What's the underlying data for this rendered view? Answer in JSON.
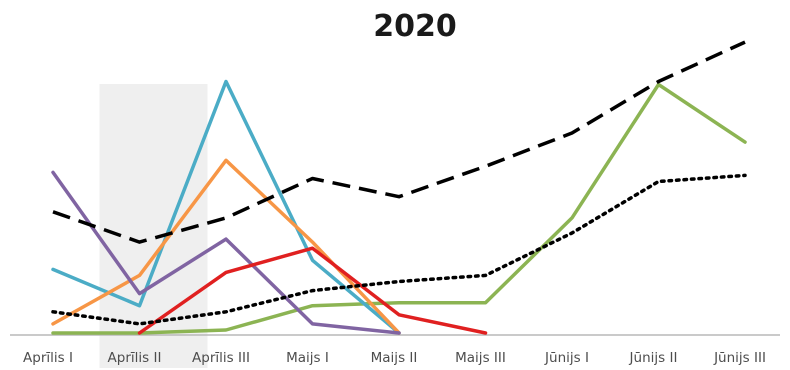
{
  "chart_data": {
    "type": "line",
    "title": "2020",
    "xlabel": "",
    "ylabel": "",
    "categories": [
      "Aprīlis I",
      "Aprīlis II",
      "Aprīlis III",
      "Maijs  I",
      "Maijs  II",
      "Maijs  III",
      "Jūnijs  I",
      "Jūnijs II",
      "Jūnijs III"
    ],
    "ylim": [
      0,
      100
    ],
    "grid": false,
    "highlight_category": "Aprīlis II",
    "series": [
      {
        "color": "#000000",
        "style": "dashed",
        "values": [
          40,
          30,
          38,
          51,
          45,
          55,
          66,
          83,
          96
        ]
      },
      {
        "color": "#000000",
        "style": "dotted",
        "values": [
          7,
          3,
          7,
          14,
          17,
          19,
          33,
          50,
          52
        ]
      },
      {
        "color": "#8cb453",
        "style": "solid",
        "values": [
          0,
          0,
          1,
          9,
          10,
          10,
          38,
          82,
          63
        ]
      },
      {
        "color": "#4bacc6",
        "style": "solid",
        "values": [
          21,
          9,
          83,
          24,
          0,
          null,
          null,
          null,
          null
        ]
      },
      {
        "color": "#f79646",
        "style": "solid",
        "values": [
          3,
          19,
          57,
          30,
          0,
          null,
          null,
          null,
          null
        ]
      },
      {
        "color": "#8064a2",
        "style": "solid",
        "values": [
          53,
          13,
          31,
          3,
          0,
          null,
          null,
          null,
          null
        ]
      },
      {
        "color": "#e02020",
        "style": "solid",
        "values": [
          null,
          0,
          20,
          28,
          6,
          0,
          null,
          null,
          null
        ]
      }
    ]
  }
}
